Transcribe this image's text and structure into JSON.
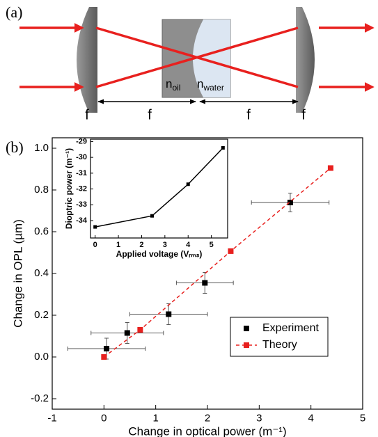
{
  "diagram": {
    "panel_label": "(a)",
    "n_oil": {
      "base": "n",
      "sub": "oil"
    },
    "n_water": {
      "base": "n",
      "sub": "water"
    },
    "f_labels": [
      "f",
      "f",
      "f",
      "f"
    ]
  },
  "chart_data": [
    {
      "type": "scatter",
      "panel_label": "(b)",
      "x_label": "Change in optical power (m⁻¹)",
      "y_label": "Change in OPL (µm)",
      "xlim": [
        -1,
        5
      ],
      "ylim": [
        -0.25,
        1.05
      ],
      "xticks": [
        -1,
        0,
        1,
        2,
        3,
        4,
        5
      ],
      "yticks": [
        -0.2,
        {
          "value": 0,
          "label": "0.0"
        },
        0.2,
        0.4,
        0.6,
        0.8,
        {
          "value": 1,
          "label": "1.0"
        }
      ],
      "legend": "lower right",
      "series": [
        {
          "name": "Experiment",
          "color": "#000000",
          "x": [
            0.05,
            0.45,
            1.25,
            1.95,
            3.6
          ],
          "values": [
            0.04,
            0.115,
            0.205,
            0.355,
            0.74
          ],
          "x_err": [
            0.75,
            0.7,
            0.75,
            0.55,
            0.75
          ],
          "y_err": [
            0.05,
            0.05,
            0.05,
            0.05,
            0.045
          ]
        },
        {
          "name": "Theory",
          "color": "#e8201e",
          "line_style": "dashed",
          "x": [
            0,
            0.7,
            2.45,
            4.38
          ],
          "values": [
            0,
            0.13,
            0.507,
            0.905
          ]
        }
      ]
    },
    {
      "type": "line",
      "x_label": "Applied voltage (Vᵣₘₛ)",
      "y_label": "Dioptric power (m⁻¹)",
      "xlim": [
        -0.2,
        5.7
      ],
      "ylim": [
        -35.1,
        -28.85
      ],
      "xticks": [
        0,
        1,
        2,
        3,
        4,
        5
      ],
      "yticks": [
        -34,
        -33,
        -32,
        -31,
        -30,
        -29
      ],
      "series": [
        {
          "color": "#000000",
          "x": [
            0,
            2.45,
            4,
            5.5
          ],
          "values": [
            -34.4,
            -33.7,
            -31.7,
            -29.4
          ]
        }
      ]
    }
  ]
}
